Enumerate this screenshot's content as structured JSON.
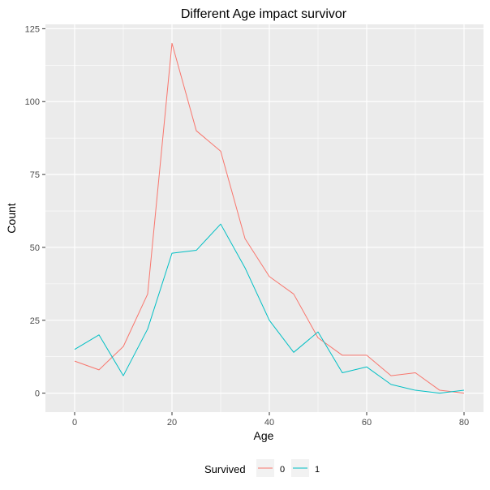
{
  "chart_data": {
    "type": "line",
    "title": "Different Age impact survivor",
    "xlabel": "Age",
    "ylabel": "Count",
    "xlim": [
      -6,
      84
    ],
    "ylim": [
      -6.5,
      126.5
    ],
    "x_ticks": [
      0,
      20,
      40,
      60,
      80
    ],
    "y_ticks": [
      0,
      25,
      50,
      75,
      100,
      125
    ],
    "grid": true,
    "legend_position": "bottom",
    "legend_title": "Survived",
    "colors": {
      "panel": "#ebebeb",
      "grid": "#ffffff",
      "series_0": "#f8766d",
      "series_1": "#00bfc4"
    },
    "x": [
      0,
      5,
      10,
      15,
      20,
      25,
      30,
      35,
      40,
      45,
      50,
      55,
      60,
      65,
      70,
      75,
      80
    ],
    "series": [
      {
        "name": "0",
        "color": "#f8766d",
        "values": [
          11,
          8,
          16,
          34,
          120,
          90,
          83,
          53,
          40,
          34,
          19,
          13,
          13,
          6,
          7,
          1,
          0
        ]
      },
      {
        "name": "1",
        "color": "#00bfc4",
        "values": [
          15,
          20,
          6,
          22,
          48,
          49,
          58,
          43,
          25,
          14,
          21,
          7,
          9,
          3,
          1,
          0,
          1
        ]
      }
    ]
  }
}
